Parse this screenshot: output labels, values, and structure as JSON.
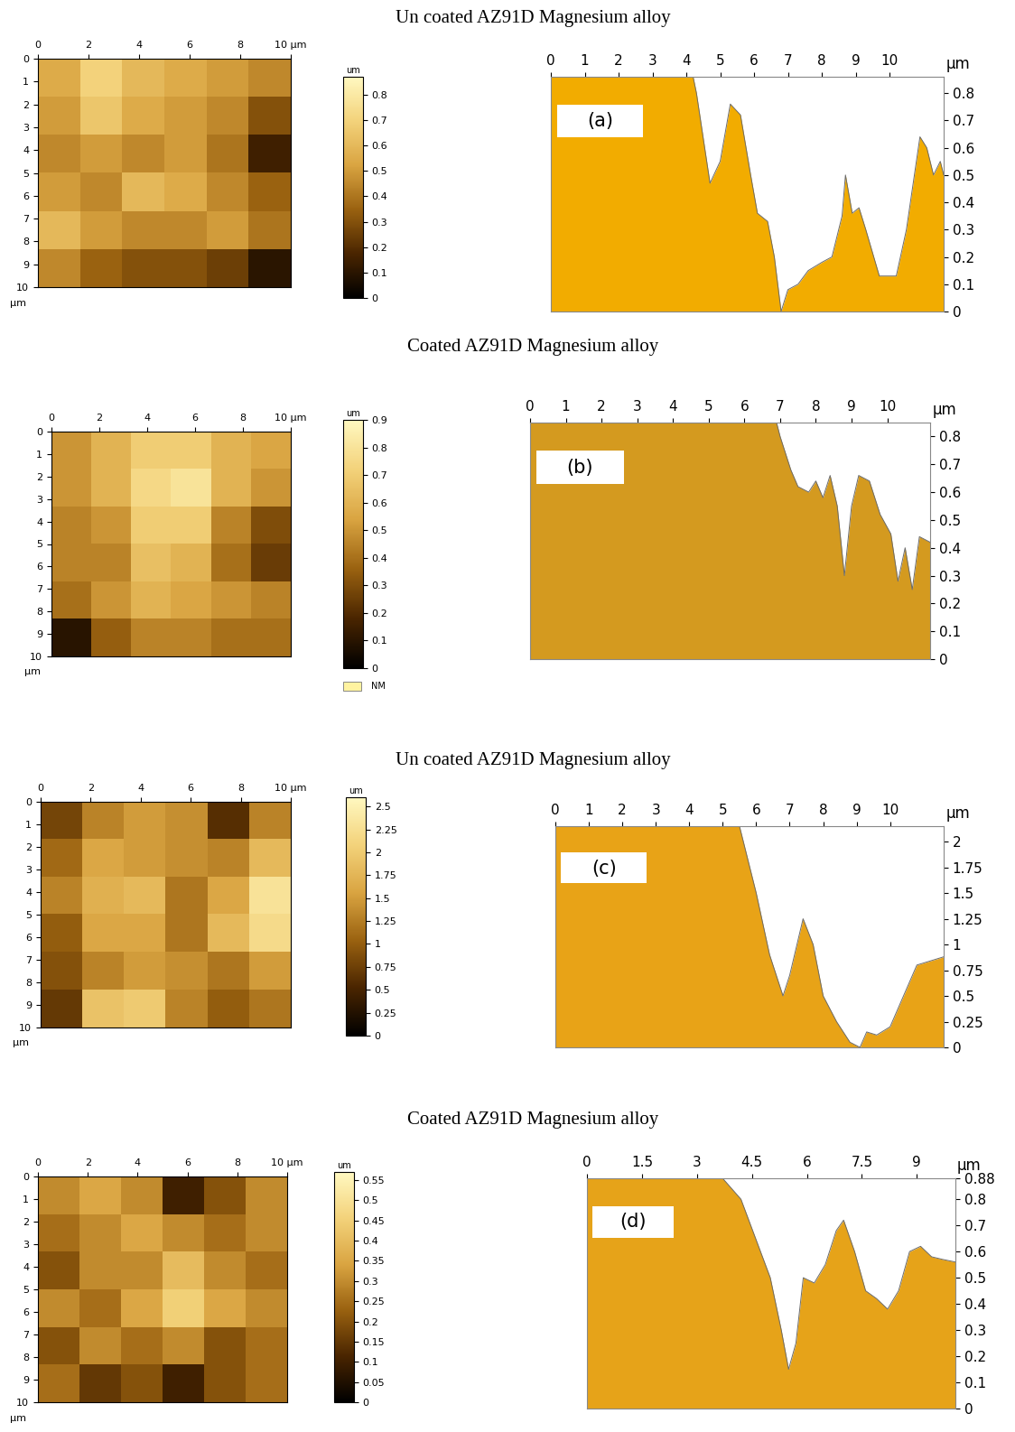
{
  "chart_data": [
    {
      "type": "heatmap",
      "title": "Un coated AZ91D Magnesium alloy",
      "cells": [
        [
          0.55,
          0.7,
          0.6,
          0.55,
          0.5,
          0.45
        ],
        [
          0.5,
          0.65,
          0.55,
          0.5,
          0.45,
          0.3
        ],
        [
          0.45,
          0.5,
          0.45,
          0.5,
          0.4,
          0.15
        ],
        [
          0.5,
          0.45,
          0.6,
          0.55,
          0.45,
          0.35
        ],
        [
          0.6,
          0.5,
          0.45,
          0.45,
          0.5,
          0.4
        ],
        [
          0.45,
          0.35,
          0.3,
          0.3,
          0.25,
          0.1
        ]
      ],
      "xlim": [
        0,
        10
      ],
      "ylim": [
        10,
        0
      ],
      "xticks": [
        0,
        2,
        4,
        6,
        8,
        {
          "value": 10,
          "label": "10 µm"
        }
      ],
      "yticks": [
        0,
        1,
        2,
        3,
        4,
        5,
        6,
        7,
        8,
        9,
        10
      ],
      "y_label": "µm",
      "colorbar": {
        "range": [
          0,
          0.87
        ],
        "ticks": [
          0,
          0.1,
          0.2,
          0.3,
          0.4,
          0.5,
          0.6,
          0.7,
          0.8
        ],
        "label": "um"
      }
    },
    {
      "type": "area",
      "annotation": "(a)",
      "color": "#f2ac00",
      "x_label": "µm",
      "x": [
        0,
        4.2,
        4.3,
        4.7,
        5.0,
        5.3,
        5.6,
        5.9,
        6.1,
        6.4,
        6.6,
        6.8,
        7.0,
        7.3,
        7.6,
        8.0,
        8.3,
        8.6,
        8.7,
        8.9,
        9.1,
        9.3,
        9.7,
        10.2,
        10.5,
        10.9,
        11.1,
        11.3,
        11.5,
        11.6
      ],
      "values": [
        0.86,
        0.86,
        0.8,
        0.47,
        0.55,
        0.76,
        0.72,
        0.5,
        0.36,
        0.33,
        0.2,
        0.0,
        0.08,
        0.1,
        0.15,
        0.18,
        0.2,
        0.35,
        0.5,
        0.36,
        0.38,
        0.3,
        0.13,
        0.13,
        0.3,
        0.64,
        0.6,
        0.5,
        0.55,
        0.5
      ],
      "xlim": [
        0,
        11.6
      ],
      "ylim": [
        0,
        0.86
      ],
      "xticks": [
        0,
        1,
        2,
        3,
        4,
        5,
        6,
        7,
        8,
        9,
        10
      ],
      "yticks": [
        0,
        0.1,
        0.2,
        0.3,
        0.4,
        0.5,
        0.6,
        0.7,
        0.8
      ]
    },
    {
      "type": "heatmap",
      "title": "Coated AZ91D Magnesium alloy",
      "annotation": "NM",
      "cells": [
        [
          0.5,
          0.6,
          0.7,
          0.7,
          0.6,
          0.55
        ],
        [
          0.5,
          0.6,
          0.75,
          0.8,
          0.6,
          0.5
        ],
        [
          0.45,
          0.5,
          0.7,
          0.7,
          0.45,
          0.3
        ],
        [
          0.45,
          0.45,
          0.65,
          0.6,
          0.4,
          0.25
        ],
        [
          0.4,
          0.5,
          0.6,
          0.55,
          0.5,
          0.45
        ],
        [
          0.1,
          0.35,
          0.45,
          0.45,
          0.4,
          0.4
        ]
      ],
      "xlim": [
        0,
        10
      ],
      "ylim": [
        10,
        0
      ],
      "xticks": [
        0,
        2,
        4,
        6,
        8,
        {
          "value": 10,
          "label": "10 µm"
        }
      ],
      "yticks": [
        0,
        1,
        2,
        3,
        4,
        5,
        6,
        7,
        8,
        9,
        10
      ],
      "y_label": "µm",
      "colorbar": {
        "range": [
          0,
          0.9
        ],
        "ticks": [
          0,
          0.1,
          0.2,
          0.3,
          0.4,
          0.5,
          0.6,
          0.7,
          0.8,
          0.9
        ],
        "label": "um"
      }
    },
    {
      "type": "area",
      "annotation": "(b)",
      "color": "#d49a1f",
      "x_label": "µm",
      "x": [
        0,
        6.9,
        7.0,
        7.3,
        7.5,
        7.8,
        8.0,
        8.2,
        8.4,
        8.6,
        8.8,
        9.0,
        9.2,
        9.5,
        9.8,
        10.1,
        10.3,
        10.5,
        10.7,
        10.9,
        11.2
      ],
      "values": [
        0.85,
        0.85,
        0.8,
        0.68,
        0.62,
        0.6,
        0.64,
        0.58,
        0.66,
        0.55,
        0.3,
        0.55,
        0.66,
        0.64,
        0.52,
        0.45,
        0.28,
        0.4,
        0.25,
        0.44,
        0.42
      ],
      "xlim": [
        0,
        11.2
      ],
      "ylim": [
        0,
        0.85
      ],
      "xticks": [
        0,
        1,
        2,
        3,
        4,
        5,
        6,
        7,
        8,
        9,
        10
      ],
      "yticks": [
        0,
        0.1,
        0.2,
        0.3,
        0.4,
        0.5,
        0.6,
        0.7,
        0.8
      ]
    },
    {
      "type": "heatmap",
      "title": "Un coated AZ91D Magnesium alloy",
      "cells": [
        [
          0.8,
          1.3,
          1.5,
          1.4,
          0.6,
          1.3
        ],
        [
          1.1,
          1.6,
          1.5,
          1.4,
          1.3,
          1.8
        ],
        [
          1.3,
          1.7,
          1.8,
          1.2,
          1.6,
          2.3
        ],
        [
          1.0,
          1.6,
          1.6,
          1.2,
          1.8,
          2.2
        ],
        [
          0.9,
          1.3,
          1.5,
          1.4,
          1.2,
          1.5
        ],
        [
          0.7,
          1.9,
          2.0,
          1.3,
          1.0,
          1.2
        ]
      ],
      "xlim": [
        0,
        10
      ],
      "ylim": [
        10,
        0
      ],
      "xticks": [
        0,
        2,
        4,
        6,
        8,
        {
          "value": 10,
          "label": "10 µm"
        }
      ],
      "yticks": [
        0,
        1,
        2,
        3,
        4,
        5,
        6,
        7,
        8,
        9,
        10
      ],
      "y_label": "µm",
      "colorbar": {
        "range": [
          0,
          2.6
        ],
        "ticks": [
          0,
          0.25,
          0.5,
          0.75,
          1,
          1.25,
          1.5,
          1.75,
          2,
          2.25,
          2.5
        ],
        "label": "um"
      }
    },
    {
      "type": "area",
      "annotation": "(c)",
      "color": "#e8a317",
      "x_label": "µm",
      "x": [
        0,
        5.5,
        6.0,
        6.4,
        6.8,
        7.0,
        7.4,
        7.7,
        8.0,
        8.4,
        8.8,
        9.1,
        9.3,
        9.6,
        10.0,
        10.4,
        10.8,
        11.3,
        11.6
      ],
      "values": [
        2.15,
        2.15,
        1.5,
        0.9,
        0.5,
        0.7,
        1.25,
        1.0,
        0.5,
        0.25,
        0.05,
        0.0,
        0.15,
        0.12,
        0.2,
        0.5,
        0.8,
        0.85,
        0.88
      ],
      "xlim": [
        0,
        11.6
      ],
      "ylim": [
        0,
        2.15
      ],
      "xticks": [
        0,
        1,
        2,
        3,
        4,
        5,
        6,
        7,
        8,
        9,
        10
      ],
      "yticks": [
        0,
        0.25,
        0.5,
        0.75,
        1,
        1.25,
        1.5,
        1.75,
        2
      ]
    },
    {
      "type": "heatmap",
      "title": "Coated AZ91D Magnesium alloy",
      "cells": [
        [
          0.3,
          0.35,
          0.3,
          0.1,
          0.2,
          0.3
        ],
        [
          0.25,
          0.3,
          0.35,
          0.3,
          0.25,
          0.3
        ],
        [
          0.2,
          0.3,
          0.3,
          0.4,
          0.3,
          0.25
        ],
        [
          0.3,
          0.25,
          0.35,
          0.45,
          0.35,
          0.3
        ],
        [
          0.2,
          0.3,
          0.25,
          0.3,
          0.2,
          0.25
        ],
        [
          0.25,
          0.15,
          0.2,
          0.1,
          0.2,
          0.25
        ]
      ],
      "xlim": [
        0,
        10
      ],
      "ylim": [
        10,
        0
      ],
      "xticks": [
        0,
        2,
        4,
        6,
        8,
        {
          "value": 10,
          "label": "10 µm"
        }
      ],
      "yticks": [
        0,
        1,
        2,
        3,
        4,
        5,
        6,
        7,
        8,
        9,
        10
      ],
      "y_label": "µm",
      "colorbar": {
        "range": [
          0,
          0.57
        ],
        "ticks": [
          0,
          0.05,
          0.1,
          0.15,
          0.2,
          0.25,
          0.3,
          0.35,
          0.4,
          0.45,
          0.5,
          0.55
        ],
        "label": "um"
      }
    },
    {
      "type": "area",
      "annotation": "(d)",
      "color": "#e6a319",
      "x_label": "µm",
      "x": [
        0,
        3.7,
        4.2,
        4.6,
        5.0,
        5.3,
        5.5,
        5.7,
        5.9,
        6.2,
        6.5,
        6.8,
        7.0,
        7.3,
        7.6,
        7.9,
        8.2,
        8.5,
        8.8,
        9.1,
        9.4,
        9.7,
        10.05
      ],
      "values": [
        0.88,
        0.88,
        0.8,
        0.65,
        0.5,
        0.3,
        0.15,
        0.25,
        0.5,
        0.48,
        0.55,
        0.68,
        0.72,
        0.6,
        0.45,
        0.42,
        0.38,
        0.45,
        0.6,
        0.62,
        0.58,
        0.57,
        0.56
      ],
      "xlim": [
        0,
        10.05
      ],
      "ylim": [
        0,
        0.88
      ],
      "xticks": [
        0,
        1.5,
        3,
        4.5,
        6,
        7.5,
        9
      ],
      "yticks": [
        0,
        0.1,
        0.2,
        0.3,
        0.4,
        0.5,
        0.6,
        0.7,
        0.8,
        0.88
      ]
    }
  ]
}
